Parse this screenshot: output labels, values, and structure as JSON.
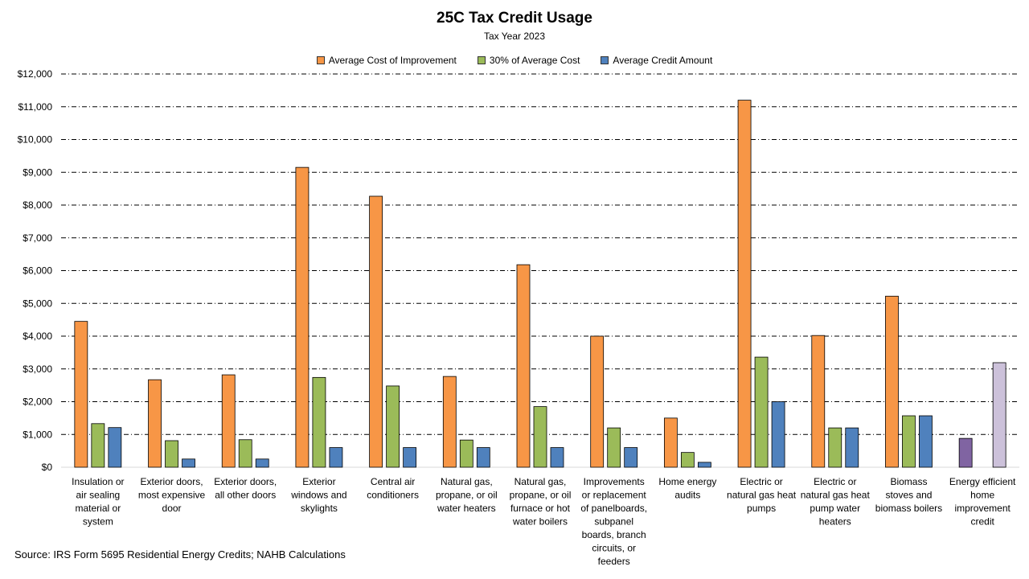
{
  "chart_data": {
    "type": "bar",
    "title": "25C Tax Credit Usage",
    "subtitle": "Tax Year 2023",
    "ylim": [
      0,
      12000
    ],
    "yticks": [
      "$0",
      "$1,000",
      "$2,000",
      "$3,000",
      "$4,000",
      "$5,000",
      "$6,000",
      "$7,000",
      "$8,000",
      "$9,000",
      "$10,000",
      "$11,000",
      "$12,000"
    ],
    "grid": true,
    "legend_position": "top-center",
    "categories": [
      [
        "Insulation or",
        "air sealing",
        "material or",
        "system"
      ],
      [
        "Exterior doors,",
        "most expensive",
        "door"
      ],
      [
        "Exterior doors,",
        "all other doors"
      ],
      [
        "Exterior",
        "windows and",
        "skylights"
      ],
      [
        "Central air",
        "conditioners"
      ],
      [
        "Natural gas,",
        "propane, or oil",
        "water heaters"
      ],
      [
        "Natural gas,",
        "propane, or oil",
        "furnace or hot",
        "water boilers"
      ],
      [
        "Improvements",
        "or replacement",
        "of panelboards,",
        "subpanel",
        "boards, branch",
        "circuits, or",
        "feeders"
      ],
      [
        "Home energy",
        "audits"
      ],
      [
        "Electric or",
        "natural gas heat",
        "pumps"
      ],
      [
        "Electric or",
        "natural gas heat",
        "pump water",
        "heaters"
      ],
      [
        "Biomass",
        "stoves and",
        "biomass boilers"
      ],
      [
        "Energy efficient",
        "home",
        "improvement",
        "credit"
      ]
    ],
    "series": [
      {
        "name": "Average Cost of Improvement",
        "color": "#F79646",
        "values": [
          4450,
          2670,
          2820,
          9150,
          8270,
          2770,
          6180,
          4000,
          1500,
          11200,
          4020,
          5220,
          null
        ]
      },
      {
        "name": "30% of Average Cost",
        "color": "#9BBB59",
        "values": [
          1330,
          810,
          840,
          2740,
          2480,
          830,
          1850,
          1200,
          450,
          3360,
          1200,
          1570,
          null
        ]
      },
      {
        "name": "Average Credit Amount",
        "color": "#4F81BD",
        "values": [
          1210,
          250,
          250,
          600,
          600,
          600,
          600,
          600,
          150,
          2000,
          1200,
          1570,
          null
        ]
      }
    ],
    "extra_bars": [
      {
        "category_index": 12,
        "slot": 0,
        "value": 880,
        "color": "#8064A2"
      },
      {
        "category_index": 12,
        "slot": 2,
        "value": 3190,
        "color": "#CCC1DA"
      }
    ],
    "source": "Source: IRS Form 5695  Residential Energy Credits; NAHB Calculations"
  }
}
